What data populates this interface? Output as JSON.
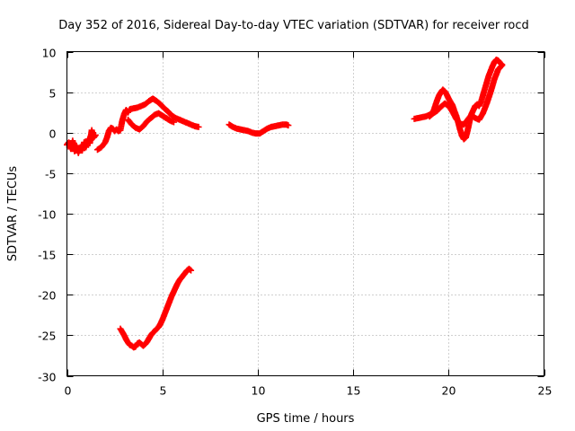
{
  "chart_data": {
    "type": "scatter",
    "title": "Day 352 of 2016, Sidereal Day-to-day VTEC variation (SDTVAR) for receiver rocd",
    "xlabel": "GPS time / hours",
    "ylabel": "SDTVAR / TECUs",
    "xlim": [
      0,
      25
    ],
    "ylim": [
      -30,
      10
    ],
    "xticks": [
      0,
      5,
      10,
      15,
      20,
      25
    ],
    "yticks": [
      -30,
      -25,
      -20,
      -15,
      -10,
      -5,
      0,
      5,
      10
    ],
    "xtick_labels": [
      "0",
      "5",
      "10",
      "15",
      "20",
      "25"
    ],
    "ytick_labels": [
      "-30",
      "-25",
      "-20",
      "-15",
      "-10",
      "-5",
      "0",
      "5",
      "10"
    ],
    "grid": true,
    "marker": "+",
    "series": [
      {
        "name": "rocd",
        "color": "#ff0000",
        "segments": [
          [
            [
              0.0,
              -1.5
            ],
            [
              0.1,
              -1.2
            ],
            [
              0.2,
              -2.0
            ],
            [
              0.3,
              -1.0
            ],
            [
              0.4,
              -2.3
            ],
            [
              0.5,
              -1.6
            ],
            [
              0.6,
              -2.5
            ],
            [
              0.7,
              -1.8
            ],
            [
              0.8,
              -2.2
            ],
            [
              0.9,
              -1.2
            ],
            [
              1.0,
              -1.8
            ],
            [
              1.1,
              -0.8
            ],
            [
              1.2,
              -1.3
            ],
            [
              1.3,
              0.3
            ],
            [
              1.4,
              -0.6
            ],
            [
              1.5,
              -0.3
            ]
          ],
          [
            [
              1.6,
              -2.1
            ],
            [
              1.8,
              -1.8
            ],
            [
              2.0,
              -1.2
            ],
            [
              2.1,
              -0.6
            ],
            [
              2.2,
              0.2
            ],
            [
              2.3,
              0.6
            ],
            [
              2.4,
              0.5
            ],
            [
              2.5,
              0.2
            ],
            [
              2.6,
              0.4
            ],
            [
              2.7,
              0.2
            ],
            [
              2.8,
              0.3
            ],
            [
              2.9,
              1.5
            ],
            [
              3.0,
              2.3
            ],
            [
              3.1,
              2.8
            ],
            [
              3.2,
              2.5
            ],
            [
              3.3,
              2.9
            ],
            [
              3.5,
              3.0
            ],
            [
              3.7,
              3.1
            ],
            [
              3.9,
              3.3
            ],
            [
              4.1,
              3.5
            ],
            [
              4.3,
              3.9
            ],
            [
              4.5,
              4.2
            ],
            [
              4.7,
              3.9
            ],
            [
              4.9,
              3.5
            ],
            [
              5.1,
              3.0
            ],
            [
              5.3,
              2.6
            ],
            [
              5.5,
              2.1
            ],
            [
              5.7,
              1.8
            ],
            [
              5.9,
              1.6
            ],
            [
              6.1,
              1.4
            ],
            [
              6.3,
              1.2
            ],
            [
              6.5,
              1.0
            ],
            [
              6.7,
              0.8
            ],
            [
              6.9,
              0.7
            ]
          ],
          [
            [
              3.2,
              1.6
            ],
            [
              3.4,
              1.0
            ],
            [
              3.6,
              0.6
            ],
            [
              3.8,
              0.4
            ],
            [
              4.0,
              0.8
            ],
            [
              4.2,
              1.4
            ],
            [
              4.4,
              1.8
            ],
            [
              4.6,
              2.2
            ],
            [
              4.8,
              2.4
            ],
            [
              5.0,
              2.1
            ],
            [
              5.2,
              1.8
            ],
            [
              5.4,
              1.5
            ],
            [
              5.6,
              1.3
            ]
          ],
          [
            [
              2.8,
              -24.2
            ],
            [
              2.9,
              -24.6
            ],
            [
              3.0,
              -25.0
            ],
            [
              3.1,
              -25.5
            ],
            [
              3.2,
              -25.9
            ],
            [
              3.3,
              -26.2
            ],
            [
              3.4,
              -26.3
            ],
            [
              3.5,
              -26.5
            ],
            [
              3.6,
              -26.4
            ],
            [
              3.7,
              -26.0
            ],
            [
              3.8,
              -25.9
            ],
            [
              3.9,
              -26.1
            ],
            [
              4.0,
              -26.3
            ],
            [
              4.1,
              -26.1
            ],
            [
              4.2,
              -25.8
            ],
            [
              4.3,
              -25.4
            ],
            [
              4.4,
              -25.0
            ],
            [
              4.5,
              -24.7
            ],
            [
              4.6,
              -24.5
            ],
            [
              4.7,
              -24.2
            ],
            [
              4.8,
              -24.0
            ],
            [
              4.9,
              -23.6
            ],
            [
              5.0,
              -23.1
            ],
            [
              5.1,
              -22.5
            ],
            [
              5.2,
              -21.9
            ],
            [
              5.3,
              -21.3
            ],
            [
              5.4,
              -20.7
            ],
            [
              5.5,
              -20.1
            ],
            [
              5.6,
              -19.6
            ],
            [
              5.7,
              -19.1
            ],
            [
              5.8,
              -18.6
            ],
            [
              5.9,
              -18.2
            ],
            [
              6.0,
              -17.9
            ],
            [
              6.1,
              -17.6
            ],
            [
              6.2,
              -17.3
            ],
            [
              6.3,
              -17.0
            ],
            [
              6.4,
              -16.8
            ],
            [
              6.5,
              -17.0
            ]
          ],
          [
            [
              8.5,
              1.0
            ],
            [
              8.7,
              0.7
            ],
            [
              8.9,
              0.5
            ],
            [
              9.1,
              0.4
            ],
            [
              9.3,
              0.3
            ],
            [
              9.5,
              0.2
            ],
            [
              9.7,
              0.0
            ],
            [
              9.9,
              -0.1
            ],
            [
              10.1,
              -0.1
            ],
            [
              10.3,
              0.2
            ],
            [
              10.5,
              0.5
            ],
            [
              10.7,
              0.7
            ],
            [
              10.9,
              0.8
            ],
            [
              11.1,
              0.9
            ],
            [
              11.3,
              1.0
            ],
            [
              11.5,
              1.0
            ],
            [
              11.6,
              0.9
            ]
          ],
          [
            [
              18.2,
              1.7
            ],
            [
              18.4,
              1.8
            ],
            [
              18.6,
              1.9
            ],
            [
              18.8,
              2.0
            ],
            [
              19.0,
              2.2
            ],
            [
              19.2,
              2.6
            ],
            [
              19.4,
              4.0
            ],
            [
              19.5,
              4.6
            ],
            [
              19.6,
              5.0
            ],
            [
              19.7,
              5.3
            ],
            [
              19.8,
              5.1
            ],
            [
              19.9,
              4.7
            ],
            [
              20.0,
              4.2
            ],
            [
              20.1,
              3.8
            ],
            [
              20.2,
              3.4
            ],
            [
              20.3,
              2.7
            ],
            [
              20.4,
              2.1
            ],
            [
              20.5,
              1.3
            ],
            [
              20.6,
              0.4
            ],
            [
              20.7,
              -0.4
            ],
            [
              20.8,
              -0.8
            ],
            [
              20.9,
              -0.6
            ],
            [
              21.0,
              0.3
            ],
            [
              21.1,
              1.4
            ],
            [
              21.2,
              2.3
            ],
            [
              21.3,
              2.8
            ],
            [
              21.4,
              3.3
            ],
            [
              21.5,
              3.5
            ],
            [
              21.6,
              3.3
            ],
            [
              21.7,
              3.8
            ],
            [
              21.8,
              4.6
            ],
            [
              21.9,
              5.4
            ],
            [
              22.0,
              6.2
            ],
            [
              22.1,
              7.0
            ],
            [
              22.2,
              7.6
            ],
            [
              22.3,
              8.2
            ],
            [
              22.4,
              8.7
            ],
            [
              22.5,
              9.0
            ],
            [
              22.6,
              8.9
            ],
            [
              22.7,
              8.6
            ],
            [
              22.8,
              8.4
            ]
          ],
          [
            [
              19.0,
              2.0
            ],
            [
              19.2,
              2.4
            ],
            [
              19.4,
              2.7
            ],
            [
              19.6,
              3.2
            ],
            [
              19.8,
              3.6
            ],
            [
              20.0,
              3.3
            ],
            [
              20.2,
              2.6
            ],
            [
              20.4,
              1.7
            ],
            [
              20.6,
              1.1
            ],
            [
              20.8,
              1.0
            ],
            [
              21.0,
              1.6
            ],
            [
              21.2,
              2.2
            ],
            [
              21.4,
              1.8
            ],
            [
              21.6,
              1.6
            ],
            [
              21.8,
              2.4
            ],
            [
              22.0,
              3.6
            ],
            [
              22.2,
              5.0
            ],
            [
              22.4,
              6.6
            ],
            [
              22.6,
              7.8
            ],
            [
              22.8,
              8.3
            ]
          ]
        ]
      }
    ]
  }
}
